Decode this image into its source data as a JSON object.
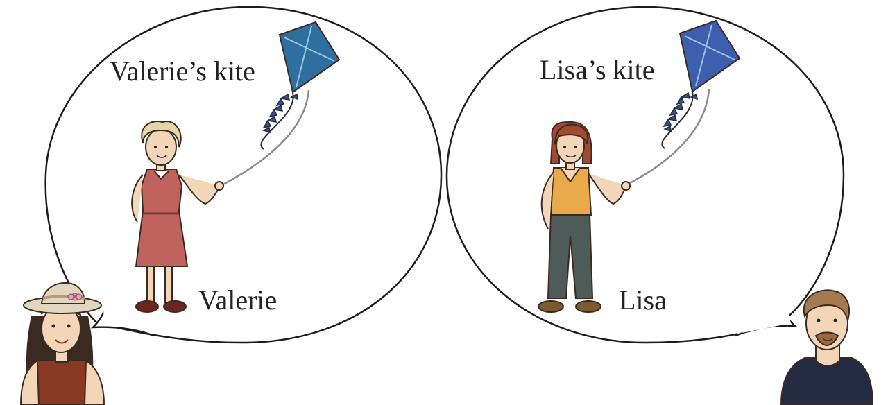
{
  "left_bubble": {
    "kite_label": "Valerie’s kite",
    "person_label": "Valerie"
  },
  "right_bubble": {
    "kite_label": "Lisa’s kite",
    "person_label": "Lisa"
  },
  "colors": {
    "kite_left": "#2f6fa0",
    "kite_right": "#3c5fae",
    "valerie_dress": "#c1635d",
    "lisa_top": "#eaa94a",
    "lisa_pants": "#4f5b58",
    "speaker_left_top": "#8a3a22",
    "speaker_right_shirt": "#232c42"
  }
}
